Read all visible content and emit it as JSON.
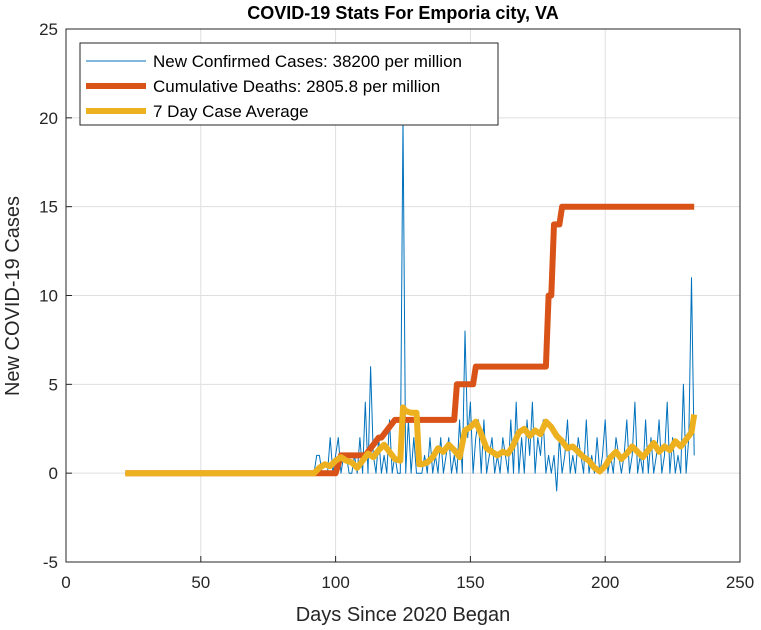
{
  "chart_data": {
    "type": "line",
    "title": "COVID-19 Stats For Emporia city, VA",
    "xlabel": "Days Since 2020 Began",
    "ylabel": "New COVID-19 Cases",
    "xlim": [
      0,
      250
    ],
    "ylim": [
      -5,
      25
    ],
    "xticks": [
      0,
      50,
      100,
      150,
      200,
      250
    ],
    "yticks": [
      -5,
      0,
      5,
      10,
      15,
      20,
      25
    ],
    "grid": true,
    "legend_position": "top-left",
    "series": [
      {
        "name": "New Confirmed Cases: 38200 per million",
        "color": "#0072BD",
        "x": [
          22,
          92,
          93,
          94,
          95,
          96,
          97,
          98,
          99,
          100,
          101,
          102,
          103,
          104,
          105,
          106,
          107,
          108,
          109,
          110,
          111,
          112,
          113,
          114,
          115,
          116,
          117,
          118,
          119,
          120,
          121,
          122,
          123,
          124,
          125,
          126,
          127,
          128,
          129,
          130,
          131,
          132,
          133,
          134,
          135,
          136,
          137,
          138,
          139,
          140,
          141,
          142,
          143,
          144,
          145,
          146,
          147,
          148,
          149,
          150,
          151,
          152,
          153,
          154,
          155,
          156,
          157,
          158,
          159,
          160,
          161,
          162,
          163,
          164,
          165,
          166,
          167,
          168,
          169,
          170,
          171,
          172,
          173,
          174,
          175,
          176,
          177,
          178,
          179,
          180,
          181,
          182,
          183,
          184,
          185,
          186,
          187,
          188,
          189,
          190,
          191,
          192,
          193,
          194,
          195,
          196,
          197,
          198,
          199,
          200,
          201,
          202,
          203,
          204,
          205,
          206,
          207,
          208,
          209,
          210,
          211,
          212,
          213,
          214,
          215,
          216,
          217,
          218,
          219,
          220,
          221,
          222,
          223,
          224,
          225,
          226,
          227,
          228,
          229,
          230,
          231,
          232,
          233
        ],
        "values": [
          0,
          0,
          1,
          1,
          0,
          0,
          0,
          2,
          0,
          1,
          2,
          0,
          1,
          1,
          0,
          0,
          1,
          0,
          2,
          0,
          4,
          0,
          6,
          1,
          0,
          2,
          0,
          1,
          0,
          3,
          0,
          1,
          0,
          0,
          20,
          0,
          3,
          0,
          2,
          0,
          0,
          0,
          1,
          0,
          2,
          0,
          1,
          0,
          2,
          0,
          1,
          2,
          0,
          1,
          0,
          3,
          0,
          8,
          2,
          4,
          0,
          2,
          3,
          0,
          3,
          0,
          1,
          2,
          0,
          1,
          0,
          2,
          1,
          0,
          3,
          0,
          4,
          0,
          2,
          0,
          3,
          1,
          4,
          0,
          2,
          1,
          3,
          0,
          1,
          0,
          1,
          -1,
          2,
          0,
          1,
          3,
          0,
          1,
          0,
          2,
          1,
          0,
          3,
          0,
          1,
          0,
          2,
          0,
          1,
          3,
          0,
          1,
          0,
          2,
          1,
          0,
          1,
          3,
          0,
          1,
          4,
          0,
          1,
          0,
          3,
          0,
          2,
          0,
          1,
          3,
          0,
          1,
          4,
          0,
          2,
          0,
          1,
          0,
          5,
          0,
          2,
          11,
          1
        ]
      },
      {
        "name": "Cumulative Deaths: 2805.8 per million",
        "color": "#D95319",
        "x": [
          22,
          94,
          100,
          102,
          103,
          110,
          111,
          116,
          117,
          122,
          123,
          144,
          145,
          151,
          152,
          165,
          178,
          179,
          180,
          181,
          182,
          183,
          184,
          200,
          233
        ],
        "values": [
          0,
          0,
          0,
          1,
          1,
          1,
          1,
          2,
          2,
          3,
          3,
          3,
          5,
          5,
          6,
          6,
          6,
          10,
          10,
          14,
          14,
          14,
          15,
          15,
          15
        ]
      },
      {
        "name": "7 Day Case Average",
        "color": "#EDB120",
        "x": [
          22,
          92,
          94,
          96,
          98,
          100,
          102,
          104,
          106,
          108,
          110,
          112,
          114,
          116,
          118,
          120,
          122,
          124,
          125,
          126,
          128,
          130,
          131,
          132,
          134,
          136,
          138,
          140,
          142,
          144,
          146,
          148,
          150,
          152,
          154,
          156,
          158,
          160,
          162,
          164,
          166,
          168,
          170,
          172,
          174,
          176,
          178,
          180,
          182,
          184,
          186,
          188,
          190,
          192,
          194,
          196,
          198,
          200,
          202,
          204,
          206,
          208,
          210,
          212,
          214,
          216,
          218,
          220,
          222,
          224,
          226,
          228,
          230,
          232,
          233
        ],
        "values": [
          0,
          0,
          0.3,
          0.5,
          0.4,
          0.7,
          0.9,
          0.7,
          0.6,
          0.3,
          0.7,
          1.1,
          0.9,
          1.3,
          1.6,
          1.2,
          0.8,
          0.7,
          3.7,
          3.5,
          3.4,
          3.4,
          0.5,
          0.5,
          0.6,
          0.9,
          1.4,
          1.2,
          1.6,
          1.3,
          0.9,
          2.4,
          2.6,
          2.9,
          2.2,
          1.4,
          1.2,
          1.0,
          1.2,
          1.1,
          1.6,
          2.3,
          2.5,
          2.1,
          2.4,
          2.2,
          2.9,
          2.6,
          2.1,
          1.8,
          1.4,
          1.5,
          1.2,
          0.9,
          0.7,
          0.3,
          0.1,
          0.4,
          0.9,
          1.2,
          0.8,
          1.1,
          1.5,
          1.2,
          0.9,
          1.3,
          1.7,
          1.2,
          1.5,
          1.3,
          1.8,
          1.5,
          1.9,
          2.3,
          3.3
        ]
      }
    ]
  }
}
